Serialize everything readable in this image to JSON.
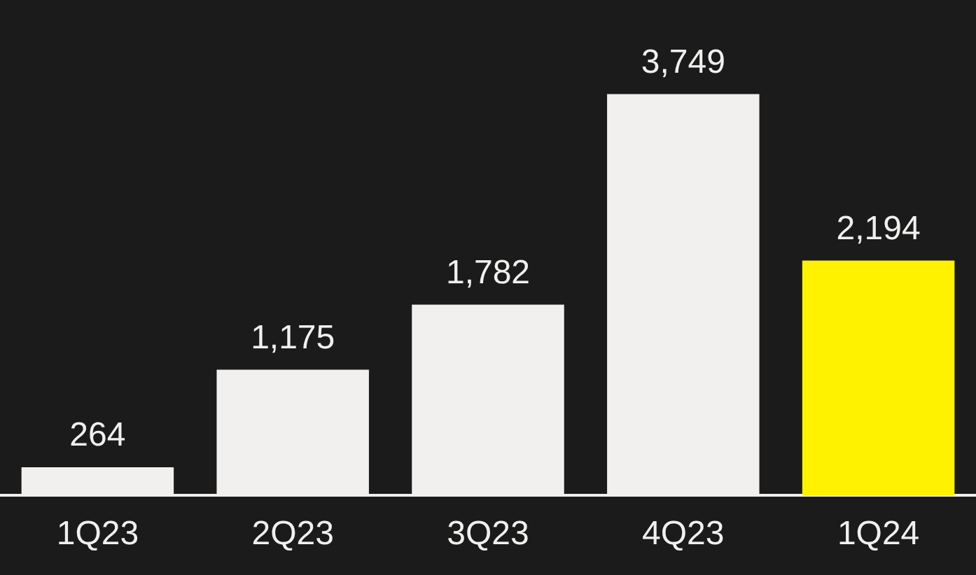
{
  "chart_data": {
    "type": "bar",
    "categories": [
      "1Q23",
      "2Q23",
      "3Q23",
      "4Q23",
      "1Q24"
    ],
    "values": [
      264,
      1175,
      1782,
      3749,
      2194
    ],
    "colors": [
      "#f2f0ee",
      "#f2f0ee",
      "#f2f0ee",
      "#f2f0ee",
      "#fff200"
    ],
    "value_labels": [
      "264",
      "1,175",
      "1,782",
      "3,749",
      "2,194"
    ],
    "grid": false,
    "legend": false
  }
}
